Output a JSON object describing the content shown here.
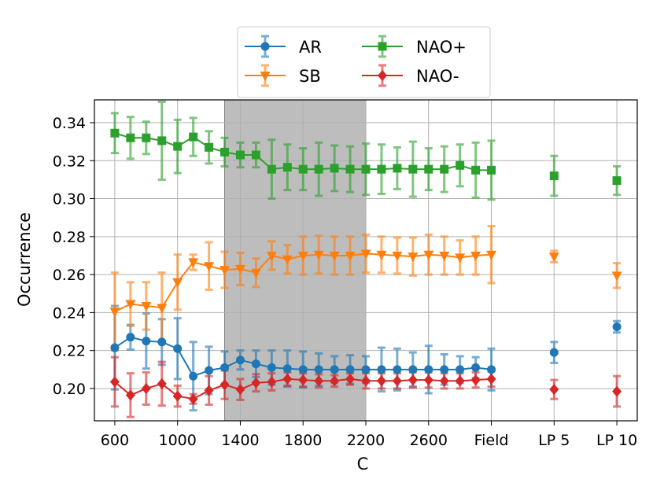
{
  "chart_data": {
    "type": "line",
    "xlabel": "C",
    "ylabel": "Occurrence",
    "ylim": [
      0.183,
      0.352
    ],
    "grid": true,
    "legend_position": "top-center",
    "shaded_region": {
      "from": 1300,
      "to": 2200
    },
    "x_ticks": [
      {
        "x": 600,
        "label": "600"
      },
      {
        "x": 1000,
        "label": "1000"
      },
      {
        "x": 1400,
        "label": "1400"
      },
      {
        "x": 1800,
        "label": "1800"
      },
      {
        "x": 2200,
        "label": "2200"
      },
      {
        "x": 2600,
        "label": "2600"
      },
      {
        "x": 3000,
        "label": "Field"
      },
      {
        "x": 3400,
        "label": "LP 5"
      },
      {
        "x": 3800,
        "label": "LP 10"
      }
    ],
    "y_ticks": [
      0.2,
      0.22,
      0.24,
      0.26,
      0.28,
      0.3,
      0.32,
      0.34
    ],
    "y_tick_labels": [
      "0.20",
      "0.22",
      "0.24",
      "0.26",
      "0.28",
      "0.30",
      "0.32",
      "0.34"
    ],
    "x": [
      600,
      700,
      800,
      900,
      1000,
      1100,
      1200,
      1300,
      1400,
      1500,
      1600,
      1700,
      1800,
      1900,
      2000,
      2100,
      2200,
      2300,
      2400,
      2500,
      2600,
      2700,
      2800,
      2900,
      3000
    ],
    "extra_x": [
      3400,
      3800
    ],
    "series": [
      {
        "name": "AR",
        "color": "#1f77b4",
        "marker": "circle",
        "values": [
          0.2215,
          0.227,
          0.225,
          0.2245,
          0.221,
          0.2065,
          0.2095,
          0.211,
          0.215,
          0.213,
          0.211,
          0.2105,
          0.21,
          0.21,
          0.21,
          0.21,
          0.21,
          0.21,
          0.21,
          0.21,
          0.21,
          0.21,
          0.21,
          0.211,
          0.21
        ],
        "errors": [
          0.022,
          0.0065,
          0.0145,
          0.012,
          0.016,
          0.018,
          0.0125,
          0.0085,
          0.005,
          0.007,
          0.009,
          0.0095,
          0.0095,
          0.0085,
          0.007,
          0.0075,
          0.007,
          0.0115,
          0.011,
          0.009,
          0.0125,
          0.008,
          0.007,
          0.0055,
          0.011
        ],
        "extra_values": [
          0.219,
          0.2325
        ],
        "extra_errors": [
          0.0055,
          0.003
        ]
      },
      {
        "name": "SB",
        "color": "#ff7f0e",
        "marker": "triangle-down",
        "values": [
          0.2405,
          0.2445,
          0.2435,
          0.2425,
          0.256,
          0.2665,
          0.2645,
          0.2625,
          0.263,
          0.261,
          0.27,
          0.268,
          0.27,
          0.2705,
          0.27,
          0.27,
          0.271,
          0.2705,
          0.27,
          0.2695,
          0.2705,
          0.27,
          0.269,
          0.27,
          0.2705
        ],
        "errors": [
          0.0205,
          0.0115,
          0.0125,
          0.0185,
          0.0145,
          0.004,
          0.0125,
          0.0095,
          0.0085,
          0.0075,
          0.0075,
          0.0075,
          0.01,
          0.01,
          0.01,
          0.01,
          0.01,
          0.0095,
          0.0095,
          0.01,
          0.0105,
          0.01,
          0.009,
          0.01,
          0.015
        ],
        "extra_values": [
          0.2695,
          0.2595
        ],
        "extra_errors": [
          0.003,
          0.0065
        ]
      },
      {
        "name": "NAO+",
        "color": "#2ca02c",
        "marker": "square",
        "values": [
          0.3345,
          0.332,
          0.332,
          0.3305,
          0.3275,
          0.3325,
          0.327,
          0.3245,
          0.323,
          0.323,
          0.3155,
          0.3165,
          0.3155,
          0.3155,
          0.316,
          0.3155,
          0.3155,
          0.3155,
          0.316,
          0.3155,
          0.3155,
          0.3155,
          0.3175,
          0.315,
          0.315
        ],
        "errors": [
          0.0105,
          0.011,
          0.0085,
          0.0205,
          0.014,
          0.01,
          0.0085,
          0.0075,
          0.0065,
          0.0065,
          0.0155,
          0.012,
          0.011,
          0.014,
          0.012,
          0.012,
          0.0135,
          0.013,
          0.011,
          0.0145,
          0.011,
          0.012,
          0.011,
          0.0145,
          0.0155
        ],
        "extra_values": [
          0.312,
          0.3095
        ],
        "extra_errors": [
          0.0105,
          0.0075
        ]
      },
      {
        "name": "NAO-",
        "color": "#d62728",
        "marker": "diamond",
        "values": [
          0.2035,
          0.1965,
          0.2,
          0.2025,
          0.196,
          0.1945,
          0.199,
          0.202,
          0.1995,
          0.203,
          0.2035,
          0.205,
          0.2045,
          0.204,
          0.204,
          0.205,
          0.204,
          0.204,
          0.204,
          0.2045,
          0.2045,
          0.204,
          0.204,
          0.2045,
          0.205
        ],
        "errors": [
          0.013,
          0.0115,
          0.0085,
          0.0115,
          0.0055,
          0.0025,
          0.0075,
          0.0075,
          0.0055,
          0.0045,
          0.0045,
          0.0035,
          0.0035,
          0.0035,
          0.003,
          0.003,
          0.004,
          0.004,
          0.004,
          0.004,
          0.004,
          0.004,
          0.004,
          0.004,
          0.004
        ],
        "extra_values": [
          0.1995,
          0.1985
        ],
        "extra_errors": [
          0.005,
          0.008
        ]
      }
    ]
  }
}
